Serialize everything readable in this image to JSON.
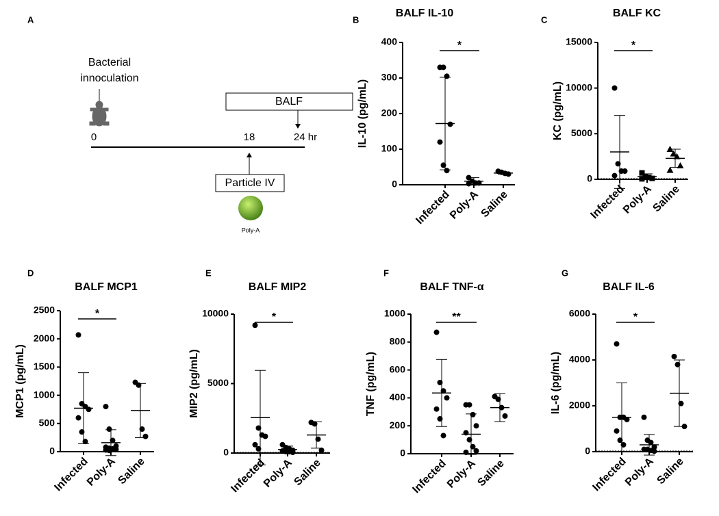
{
  "diagram": {
    "panel": "A",
    "inoculation": [
      "Bacterial",
      "innoculation"
    ],
    "t0": "0",
    "t18": "18",
    "t24": "24 hr",
    "balf": "BALF",
    "particle": "Particle IV",
    "particle_name": "Poly-A"
  },
  "chart_data": [
    {
      "type": "dot",
      "panel": "B",
      "title": "BALF IL-10",
      "y_label": "IL-10 (pg/mL)",
      "categories": [
        "Infected",
        "Poly-A",
        "Saline"
      ],
      "markers": [
        "circle",
        "circle",
        "circle"
      ],
      "color": "#000000",
      "points": [
        [
          330,
          330,
          305,
          170,
          120,
          55,
          40
        ],
        [
          20,
          10,
          5,
          5,
          3
        ],
        [
          38,
          35,
          32,
          30
        ]
      ],
      "mean": [
        172,
        10,
        33
      ],
      "sd": [
        130,
        10,
        3
      ],
      "ylim": [
        0,
        400
      ],
      "yticks": [
        0,
        100,
        200,
        300,
        400
      ],
      "annotation": "*"
    },
    {
      "type": "dot",
      "panel": "C",
      "title": "BALF KC",
      "y_label": "KC (pg/mL)",
      "categories": [
        "Infected",
        "Poly-A",
        "Saline"
      ],
      "markers": [
        "circle",
        "square",
        "triangle"
      ],
      "color": "#000000",
      "points": [
        [
          10000,
          1700,
          900,
          900,
          400
        ],
        [
          700,
          300,
          200,
          100,
          50
        ],
        [
          3300,
          2800,
          2500,
          1500,
          1000
        ]
      ],
      "mean": [
        3000,
        300,
        2300
      ],
      "sd": [
        4000,
        300,
        1000
      ],
      "ylim": [
        0,
        15000
      ],
      "yticks": [
        0,
        5000,
        10000,
        15000
      ],
      "annotation": "*",
      "baseline": "dotted"
    },
    {
      "type": "dot",
      "panel": "D",
      "title": "BALF MCP1",
      "y_label": "MCP1 (pg/mL)",
      "categories": [
        "Infected",
        "Poly-A",
        "Saline"
      ],
      "markers": [
        "circle",
        "circle",
        "circle"
      ],
      "color": "#000000",
      "points": [
        [
          2070,
          850,
          800,
          750,
          600,
          350,
          180
        ],
        [
          800,
          400,
          200,
          100,
          80,
          60,
          50,
          40,
          30,
          20
        ],
        [
          1230,
          1180,
          400,
          270
        ]
      ],
      "mean": [
        770,
        160,
        730
      ],
      "sd": [
        630,
        230,
        480
      ],
      "ylim": [
        0,
        2500
      ],
      "yticks": [
        0,
        500,
        1000,
        1500,
        2000,
        2500
      ],
      "annotation": "*"
    },
    {
      "type": "dot",
      "panel": "E",
      "title": "BALF MIP2",
      "y_label": "MIP2 (pg/mL)",
      "categories": [
        "Infected",
        "Poly-A",
        "Saline"
      ],
      "markers": [
        "circle",
        "circle",
        "circle"
      ],
      "color": "#000000",
      "points": [
        [
          9200,
          1800,
          1300,
          1200,
          600,
          300
        ],
        [
          600,
          400,
          300,
          200,
          150,
          100,
          100,
          50
        ],
        [
          2200,
          2100,
          1000,
          200
        ]
      ],
      "mean": [
        2550,
        250,
        1300
      ],
      "sd": [
        3400,
        250,
        950
      ],
      "ylim": [
        0,
        10000
      ],
      "yticks": [
        0,
        5000,
        10000
      ],
      "annotation": "*",
      "baseline": "dotted"
    },
    {
      "type": "dot",
      "panel": "F",
      "title": "BALF TNF-α",
      "y_label": "TNF (pg/mL)",
      "categories": [
        "Infected",
        "Poly-A",
        "Saline"
      ],
      "markers": [
        "circle",
        "circle",
        "circle"
      ],
      "color": "#000000",
      "points": [
        [
          870,
          510,
          450,
          400,
          320,
          250,
          130
        ],
        [
          350,
          350,
          280,
          200,
          150,
          100,
          50,
          20,
          10
        ],
        [
          410,
          390,
          330,
          270
        ]
      ],
      "mean": [
        435,
        140,
        330
      ],
      "sd": [
        240,
        145,
        100
      ],
      "ylim": [
        0,
        1000
      ],
      "yticks": [
        0,
        200,
        400,
        600,
        800,
        1000
      ],
      "annotation": "**"
    },
    {
      "type": "dot",
      "panel": "G",
      "title": "BALF IL-6",
      "y_label": "IL-6 (pg/mL)",
      "categories": [
        "Infected",
        "Poly-A",
        "Saline"
      ],
      "markers": [
        "circle",
        "circle",
        "circle"
      ],
      "color": "#000000",
      "points": [
        [
          4700,
          1500,
          1500,
          1400,
          900,
          500,
          300
        ],
        [
          1500,
          500,
          400,
          200,
          100,
          100,
          50,
          20
        ],
        [
          4150,
          3800,
          2100,
          1100
        ]
      ],
      "mean": [
        1500,
        300,
        2550
      ],
      "sd": [
        1500,
        450,
        1450
      ],
      "ylim": [
        0,
        6000
      ],
      "yticks": [
        0,
        2000,
        4000,
        6000
      ],
      "annotation": "*",
      "baseline": "dotted"
    }
  ]
}
